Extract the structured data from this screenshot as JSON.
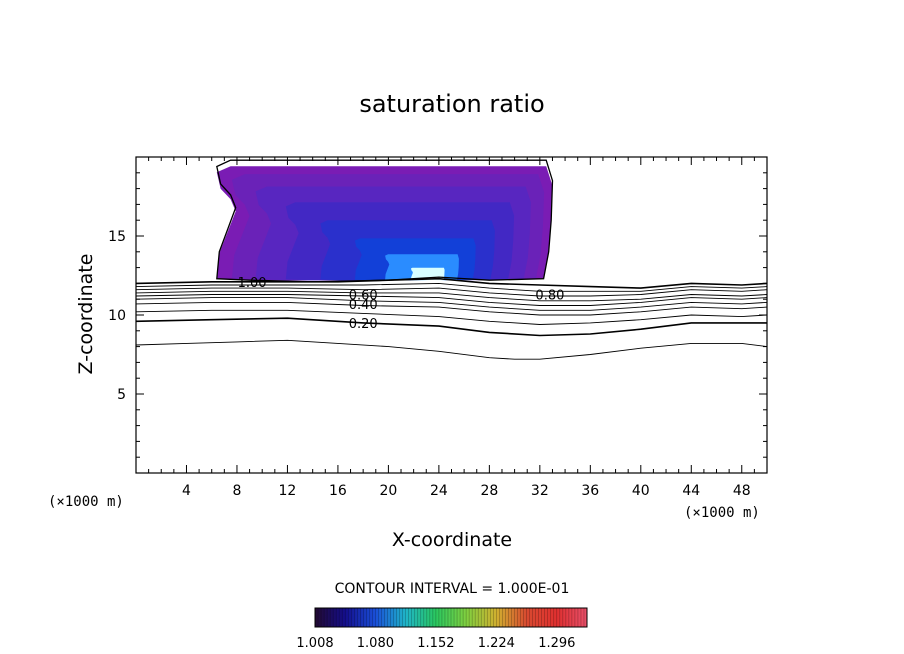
{
  "chart_data": {
    "type": "contour",
    "title": "saturation ratio",
    "xlabel": "X-coordinate",
    "ylabel": "Z-coordinate",
    "x_unit": "(×1000 m)",
    "y_unit": "(×1000 m)",
    "xlim": [
      0,
      50
    ],
    "ylim": [
      0,
      20
    ],
    "x_ticks": [
      4,
      8,
      12,
      16,
      20,
      24,
      28,
      32,
      36,
      40,
      44,
      48
    ],
    "y_ticks": [
      5,
      10,
      15
    ],
    "contour_interval_text": "CONTOUR INTERVAL = 1.000E-01",
    "contour_labels": [
      {
        "text": "1.00",
        "x": 9.2,
        "z": 12.1
      },
      {
        "text": "0.80",
        "x": 32.8,
        "z": 11.3
      },
      {
        "text": "0.60",
        "x": 18.0,
        "z": 11.3
      },
      {
        "text": "0.40",
        "x": 18.0,
        "z": 10.7
      },
      {
        "text": "0.20",
        "x": 18.0,
        "z": 9.5
      }
    ],
    "contour_lines": [
      {
        "level": 1.0,
        "points": [
          [
            0,
            12.0
          ],
          [
            6,
            12.1
          ],
          [
            10,
            12.1
          ],
          [
            16,
            12.1
          ],
          [
            20,
            12.2
          ],
          [
            24,
            12.3
          ],
          [
            28,
            12.0
          ],
          [
            32,
            11.9
          ],
          [
            36,
            11.8
          ],
          [
            40,
            11.7
          ],
          [
            44,
            12.0
          ],
          [
            48,
            11.9
          ],
          [
            50,
            12.0
          ]
        ]
      },
      {
        "level": 0.9,
        "points": [
          [
            0,
            11.8
          ],
          [
            6,
            11.9
          ],
          [
            12,
            11.9
          ],
          [
            18,
            11.9
          ],
          [
            24,
            12.0
          ],
          [
            28,
            11.7
          ],
          [
            32,
            11.5
          ],
          [
            36,
            11.5
          ],
          [
            40,
            11.5
          ],
          [
            44,
            11.8
          ],
          [
            48,
            11.7
          ],
          [
            50,
            11.8
          ]
        ]
      },
      {
        "level": 0.8,
        "points": [
          [
            0,
            11.6
          ],
          [
            6,
            11.7
          ],
          [
            12,
            11.7
          ],
          [
            18,
            11.6
          ],
          [
            24,
            11.7
          ],
          [
            28,
            11.4
          ],
          [
            32,
            11.2
          ],
          [
            36,
            11.2
          ],
          [
            40,
            11.3
          ],
          [
            44,
            11.6
          ],
          [
            48,
            11.5
          ],
          [
            50,
            11.6
          ]
        ]
      },
      {
        "level": 0.7,
        "points": [
          [
            0,
            11.4
          ],
          [
            6,
            11.5
          ],
          [
            12,
            11.5
          ],
          [
            18,
            11.4
          ],
          [
            24,
            11.4
          ],
          [
            28,
            11.1
          ],
          [
            32,
            10.9
          ],
          [
            36,
            10.9
          ],
          [
            40,
            11.0
          ],
          [
            44,
            11.3
          ],
          [
            48,
            11.2
          ],
          [
            50,
            11.3
          ]
        ]
      },
      {
        "level": 0.6,
        "points": [
          [
            0,
            11.2
          ],
          [
            6,
            11.3
          ],
          [
            12,
            11.3
          ],
          [
            18,
            11.2
          ],
          [
            24,
            11.1
          ],
          [
            28,
            10.8
          ],
          [
            32,
            10.6
          ],
          [
            36,
            10.6
          ],
          [
            40,
            10.8
          ],
          [
            44,
            11.1
          ],
          [
            48,
            11.0
          ],
          [
            50,
            11.1
          ]
        ]
      },
      {
        "level": 0.5,
        "points": [
          [
            0,
            11.0
          ],
          [
            6,
            11.1
          ],
          [
            12,
            11.1
          ],
          [
            18,
            10.9
          ],
          [
            24,
            10.8
          ],
          [
            28,
            10.5
          ],
          [
            32,
            10.3
          ],
          [
            36,
            10.3
          ],
          [
            40,
            10.5
          ],
          [
            44,
            10.8
          ],
          [
            48,
            10.7
          ],
          [
            50,
            10.8
          ]
        ]
      },
      {
        "level": 0.4,
        "points": [
          [
            0,
            10.7
          ],
          [
            6,
            10.8
          ],
          [
            12,
            10.8
          ],
          [
            18,
            10.6
          ],
          [
            24,
            10.5
          ],
          [
            28,
            10.2
          ],
          [
            32,
            10.0
          ],
          [
            36,
            10.0
          ],
          [
            40,
            10.2
          ],
          [
            44,
            10.5
          ],
          [
            48,
            10.4
          ],
          [
            50,
            10.5
          ]
        ]
      },
      {
        "level": 0.3,
        "points": [
          [
            0,
            10.2
          ],
          [
            6,
            10.3
          ],
          [
            12,
            10.3
          ],
          [
            18,
            10.1
          ],
          [
            24,
            9.9
          ],
          [
            28,
            9.6
          ],
          [
            32,
            9.4
          ],
          [
            36,
            9.5
          ],
          [
            40,
            9.7
          ],
          [
            44,
            10.0
          ],
          [
            48,
            9.9
          ],
          [
            50,
            10.0
          ]
        ]
      },
      {
        "level": 0.2,
        "points": [
          [
            0,
            9.6
          ],
          [
            6,
            9.7
          ],
          [
            12,
            9.8
          ],
          [
            18,
            9.5
          ],
          [
            24,
            9.3
          ],
          [
            28,
            8.9
          ],
          [
            32,
            8.7
          ],
          [
            36,
            8.8
          ],
          [
            40,
            9.1
          ],
          [
            44,
            9.5
          ],
          [
            48,
            9.5
          ],
          [
            50,
            9.5
          ]
        ]
      },
      {
        "level": 0.1,
        "points": [
          [
            0,
            8.1
          ],
          [
            4,
            8.2
          ],
          [
            8,
            8.3
          ],
          [
            12,
            8.4
          ],
          [
            16,
            8.2
          ],
          [
            20,
            8.0
          ],
          [
            24,
            7.7
          ],
          [
            28,
            7.3
          ],
          [
            30,
            7.2
          ],
          [
            32,
            7.2
          ],
          [
            36,
            7.5
          ],
          [
            40,
            7.9
          ],
          [
            44,
            8.2
          ],
          [
            48,
            8.2
          ],
          [
            50,
            8.0
          ]
        ]
      }
    ],
    "supersaturated_region": {
      "outline": [
        [
          6.4,
          12.3
        ],
        [
          6.6,
          14.0
        ],
        [
          7.3,
          15.5
        ],
        [
          7.9,
          16.8
        ],
        [
          7.5,
          17.6
        ],
        [
          6.7,
          18.3
        ],
        [
          6.4,
          19.4
        ],
        [
          7.5,
          19.8
        ],
        [
          32.5,
          19.8
        ],
        [
          33.0,
          18.5
        ],
        [
          32.9,
          16.0
        ],
        [
          32.7,
          14.0
        ],
        [
          32.3,
          12.3
        ],
        [
          28,
          12.2
        ],
        [
          24,
          12.4
        ],
        [
          20,
          12.2
        ],
        [
          14,
          12.1
        ],
        [
          9,
          12.2
        ]
      ],
      "fill_levels": [
        {
          "value": 1.01,
          "color": "#7a1cb4"
        },
        {
          "value": 1.02,
          "color": "#6a22b8"
        },
        {
          "value": 1.04,
          "color": "#5826c0"
        },
        {
          "value": 1.06,
          "color": "#4228c4"
        },
        {
          "value": 1.09,
          "color": "#2a30cc"
        },
        {
          "value": 1.13,
          "color": "#1240d8"
        },
        {
          "value": 1.2,
          "color": "#2a8cff"
        },
        {
          "value": 1.3,
          "color": "#d8ffff"
        }
      ]
    },
    "colorbar": {
      "tick_labels": [
        "1.008",
        "1.080",
        "1.152",
        "1.224",
        "1.296"
      ],
      "range": [
        1.008,
        1.332
      ],
      "stops": [
        "#230a32",
        "#140e8c",
        "#1a4fd8",
        "#1fb4c8",
        "#2ac860",
        "#80d040",
        "#d0b030",
        "#d84a30",
        "#e03030",
        "#e8506a"
      ]
    },
    "grid": false,
    "legend": "none"
  }
}
